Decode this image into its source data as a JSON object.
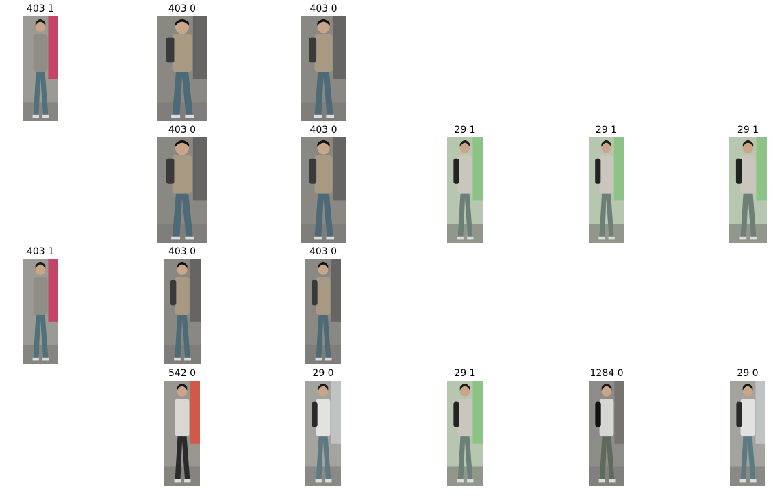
{
  "rows": [
    {
      "cells": [
        {
          "label": "403 1",
          "scene": "a"
        },
        {
          "label": "403 0",
          "scene": "b"
        },
        {
          "label": "403 0",
          "scene": "b"
        }
      ]
    },
    {
      "cells": [
        {
          "label": "403 0",
          "scene": "b"
        },
        {
          "label": "403 0",
          "scene": "b"
        },
        {
          "label": "29 1",
          "scene": "c"
        },
        {
          "label": "29 1",
          "scene": "c"
        },
        {
          "label": "29 1",
          "scene": "c"
        }
      ]
    },
    {
      "cells": [
        {
          "label": "403 1",
          "scene": "a"
        },
        {
          "label": "403 0",
          "scene": "b"
        },
        {
          "label": "403 0",
          "scene": "b"
        }
      ]
    },
    {
      "cells": [
        {
          "label": "542 0",
          "scene": "d"
        },
        {
          "label": "29 0",
          "scene": "e"
        },
        {
          "label": "29 1",
          "scene": "c"
        },
        {
          "label": "1284 0",
          "scene": "f"
        },
        {
          "label": "29 0",
          "scene": "e"
        }
      ]
    }
  ]
}
